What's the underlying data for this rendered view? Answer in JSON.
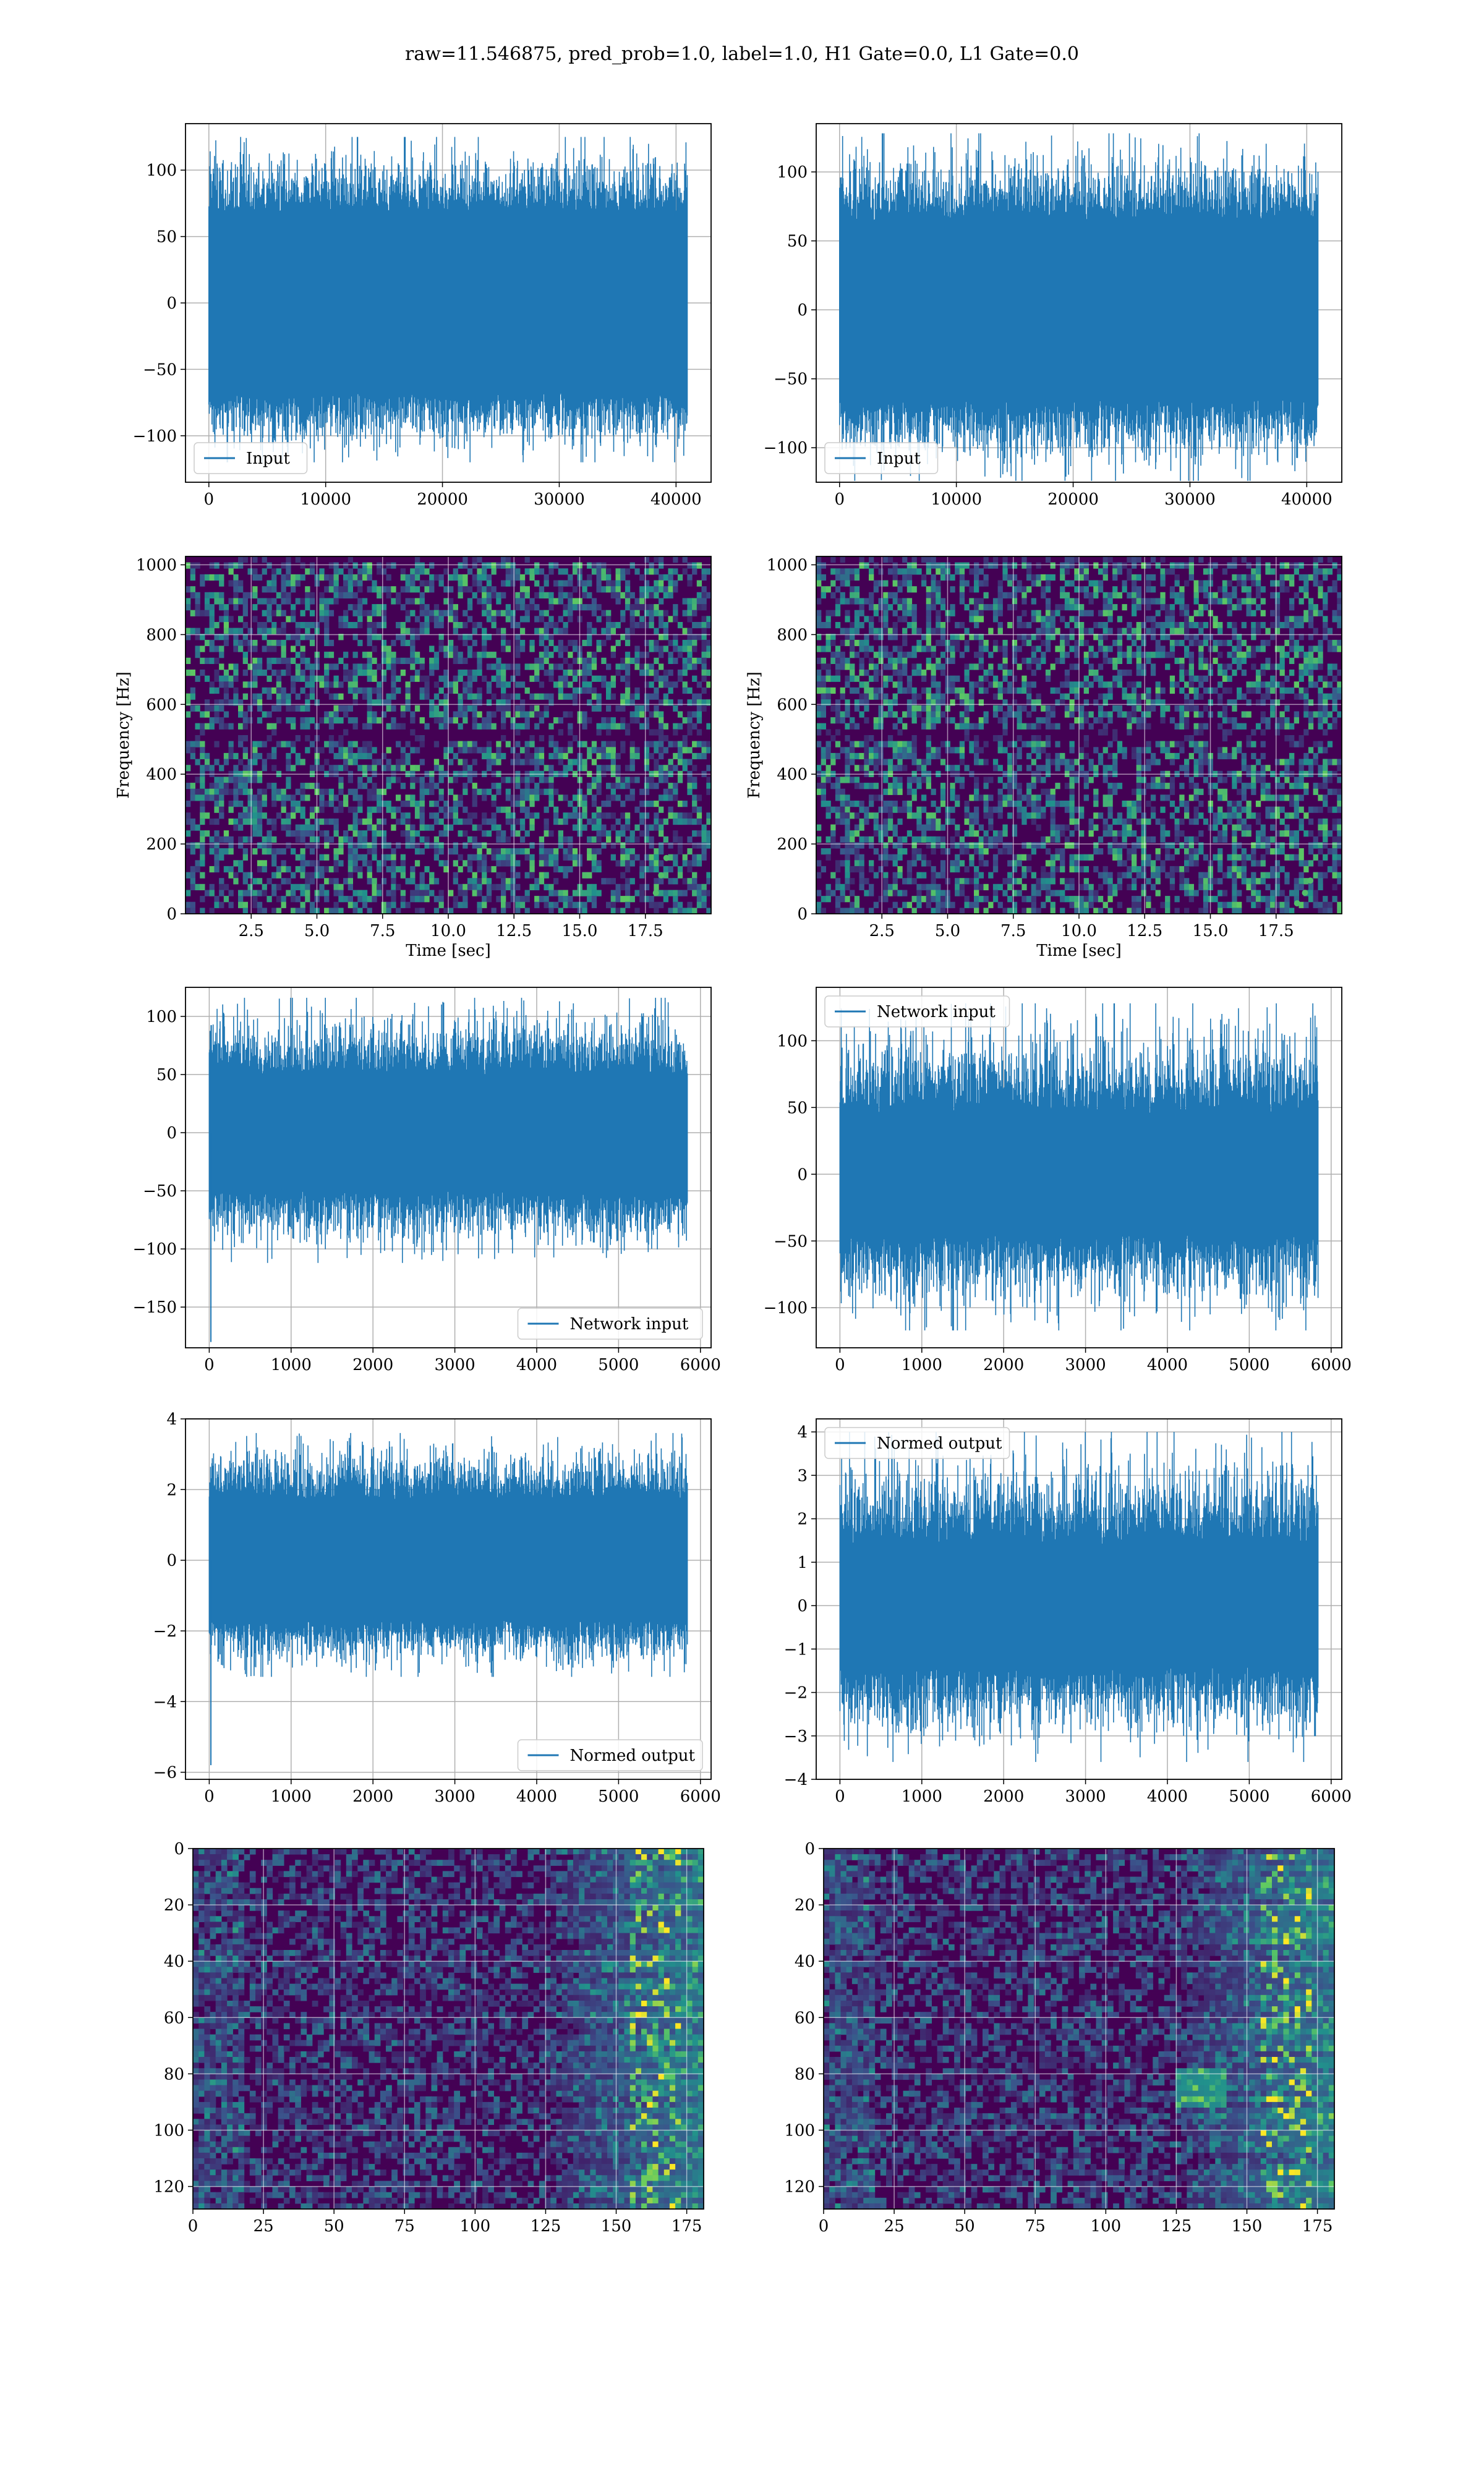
{
  "title": "raw=11.546875, pred_prob=1.0, label=1.0, H1 Gate=0.0, L1 Gate=0.0",
  "colors": {
    "line": "#1f77b4",
    "grid": "#b0b0b0",
    "viridis_low": "#440154",
    "viridis_mid": "#21918c",
    "viridis_high": "#fde725"
  },
  "chart_data": [
    {
      "id": "p1",
      "type": "line",
      "legend": "Input",
      "legend_loc": "lower left",
      "xlim": [
        -2000,
        43000
      ],
      "ylim": [
        -135,
        135
      ],
      "xticks": [
        0,
        10000,
        20000,
        30000,
        40000
      ],
      "yticks": [
        -100,
        -50,
        0,
        50,
        100
      ],
      "x_range": [
        0,
        40960
      ],
      "envelope": {
        "core": 68,
        "peak": 125,
        "min": -120
      },
      "grid": true
    },
    {
      "id": "p2",
      "type": "line",
      "legend": "Input",
      "legend_loc": "lower left",
      "xlim": [
        -2000,
        43000
      ],
      "ylim": [
        -125,
        135
      ],
      "xticks": [
        0,
        10000,
        20000,
        30000,
        40000
      ],
      "yticks": [
        -100,
        -50,
        0,
        50,
        100
      ],
      "x_range": [
        0,
        40960
      ],
      "envelope": {
        "core": 65,
        "peak": 128,
        "min": -124
      },
      "grid": true
    },
    {
      "id": "p3",
      "type": "heatmap",
      "xlabel": "Time [sec]",
      "ylabel": "Frequency [Hz]",
      "xlim": [
        0,
        20
      ],
      "ylim": [
        0,
        1024
      ],
      "xticks": [
        2.5,
        5.0,
        7.5,
        10.0,
        12.5,
        15.0,
        17.5
      ],
      "yticks": [
        0,
        200,
        400,
        600,
        800,
        1000
      ],
      "xticklabels": [
        "2.5",
        "5.0",
        "7.5",
        "10.0",
        "12.5",
        "15.0",
        "17.5"
      ],
      "grid": true,
      "colormap": "viridis"
    },
    {
      "id": "p4",
      "type": "heatmap",
      "xlabel": "Time [sec]",
      "ylabel": "Frequency [Hz]",
      "xlim": [
        0,
        20
      ],
      "ylim": [
        0,
        1024
      ],
      "xticks": [
        2.5,
        5.0,
        7.5,
        10.0,
        12.5,
        15.0,
        17.5
      ],
      "yticks": [
        0,
        200,
        400,
        600,
        800,
        1000
      ],
      "xticklabels": [
        "2.5",
        "5.0",
        "7.5",
        "10.0",
        "12.5",
        "15.0",
        "17.5"
      ],
      "grid": true,
      "colormap": "viridis"
    },
    {
      "id": "p5",
      "type": "line",
      "legend": "Network input",
      "legend_loc": "lower right",
      "xlim": [
        -290,
        6130
      ],
      "ylim": [
        -185,
        125
      ],
      "xticks": [
        0,
        1000,
        2000,
        3000,
        4000,
        5000,
        6000
      ],
      "yticks": [
        -150,
        -100,
        -50,
        0,
        50,
        100
      ],
      "x_range": [
        0,
        5840
      ],
      "envelope": {
        "core": 50,
        "peak": 116,
        "min": -112
      },
      "spike": -180,
      "grid": true
    },
    {
      "id": "p6",
      "type": "line",
      "legend": "Network input",
      "legend_loc": "upper left",
      "xlim": [
        -290,
        6130
      ],
      "ylim": [
        -130,
        140
      ],
      "xticks": [
        0,
        1000,
        2000,
        3000,
        4000,
        5000,
        6000
      ],
      "yticks": [
        -100,
        -50,
        0,
        50,
        100
      ],
      "x_range": [
        0,
        5840
      ],
      "envelope": {
        "core": 45,
        "peak": 128,
        "min": -117
      },
      "grid": true
    },
    {
      "id": "p7",
      "type": "line",
      "legend": "Normed output",
      "legend_loc": "lower right",
      "xlim": [
        -290,
        6130
      ],
      "ylim": [
        -6.2,
        4.0
      ],
      "xticks": [
        0,
        1000,
        2000,
        3000,
        4000,
        5000,
        6000
      ],
      "yticks": [
        -6,
        -4,
        -2,
        0,
        2,
        4
      ],
      "x_range": [
        0,
        5840
      ],
      "envelope": {
        "core": 1.7,
        "peak": 3.6,
        "min": -3.3
      },
      "spike": -5.8,
      "grid": true
    },
    {
      "id": "p8",
      "type": "line",
      "legend": "Normed output",
      "legend_loc": "upper left",
      "xlim": [
        -290,
        6130
      ],
      "ylim": [
        -4.0,
        4.3
      ],
      "xticks": [
        0,
        1000,
        2000,
        3000,
        4000,
        5000,
        6000
      ],
      "yticks": [
        -4,
        -3,
        -2,
        -1,
        0,
        1,
        2,
        3,
        4
      ],
      "x_range": [
        0,
        5840
      ],
      "envelope": {
        "core": 1.4,
        "peak": 4.0,
        "min": -3.6
      },
      "grid": true
    },
    {
      "id": "p9",
      "type": "heatmap",
      "xlim": [
        0,
        181
      ],
      "ylim": [
        128,
        0
      ],
      "xticks": [
        0,
        25,
        50,
        75,
        100,
        125,
        150,
        175
      ],
      "yticks": [
        0,
        20,
        40,
        60,
        80,
        100,
        120
      ],
      "grid": true,
      "colormap": "viridis"
    },
    {
      "id": "p10",
      "type": "heatmap",
      "xlim": [
        0,
        181
      ],
      "ylim": [
        128,
        0
      ],
      "xticks": [
        0,
        25,
        50,
        75,
        100,
        125,
        150,
        175
      ],
      "yticks": [
        0,
        20,
        40,
        60,
        80,
        100,
        120
      ],
      "grid": true,
      "colormap": "viridis"
    }
  ]
}
